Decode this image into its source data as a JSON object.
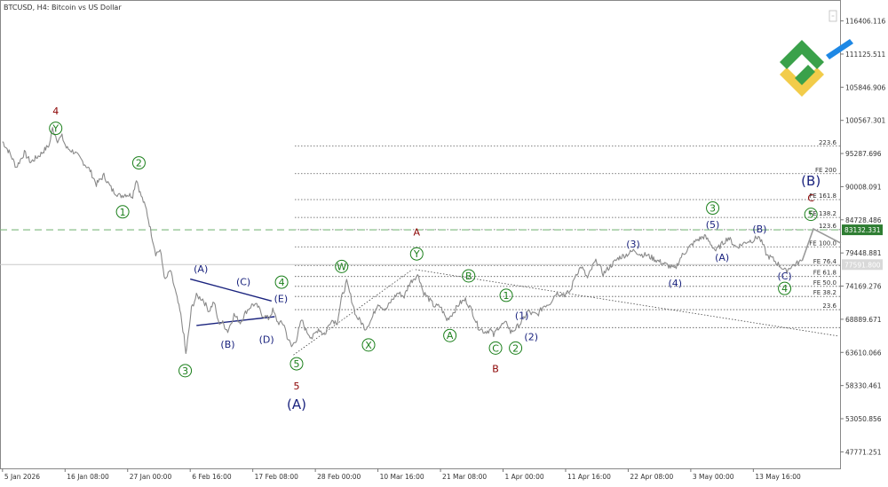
{
  "chart_data": {
    "type": "line",
    "title": "BTCUSD, H4:  Bitcoin vs US Dollar",
    "y_axis": {
      "ylim": [
        45140,
        119030
      ],
      "tick_labels": [
        "116406.116",
        "111125.511",
        "105846.906",
        "100567.301",
        "95287.696",
        "90008.091",
        "84728.486",
        "79448.881",
        "74169.276",
        "68889.671",
        "63610.066",
        "58330.461",
        "53050.856",
        "47771.251"
      ],
      "tick_values": [
        116406.116,
        111125.511,
        105846.906,
        100567.301,
        95287.696,
        90008.091,
        84728.486,
        79448.881,
        74169.276,
        68889.671,
        63610.066,
        58330.461,
        53050.856,
        47771.251
      ]
    },
    "x_axis": {
      "tick_labels": [
        "5 Jan 2026",
        "16 Jan 08:00",
        "27 Jan 00:00",
        "6 Feb 16:00",
        "17 Feb 08:00",
        "28 Feb 00:00",
        "10 Mar 16:00",
        "21 Mar 08:00",
        "1 Apr 00:00",
        "11 Apr 16:00",
        "22 Apr 08:00",
        "3 May 00:00",
        "13 May 16:00"
      ],
      "tick_pos": [
        0,
        1,
        2,
        3,
        4,
        5,
        6,
        7,
        8,
        9,
        10,
        11,
        12
      ],
      "xlim": [
        -0.04,
        13.4
      ]
    },
    "price_path": [
      [
        0.0,
        97200
      ],
      [
        0.12,
        95300
      ],
      [
        0.22,
        93100
      ],
      [
        0.35,
        95400
      ],
      [
        0.45,
        93900
      ],
      [
        0.6,
        95100
      ],
      [
        0.75,
        96700
      ],
      [
        0.8,
        99300
      ],
      [
        0.88,
        97400
      ],
      [
        0.95,
        98000
      ],
      [
        1.02,
        96200
      ],
      [
        1.15,
        95500
      ],
      [
        1.28,
        94000
      ],
      [
        1.4,
        92600
      ],
      [
        1.5,
        90400
      ],
      [
        1.62,
        91800
      ],
      [
        1.75,
        89500
      ],
      [
        1.88,
        88500
      ],
      [
        1.96,
        88800
      ],
      [
        2.08,
        88600
      ],
      [
        2.14,
        91300
      ],
      [
        2.2,
        89000
      ],
      [
        2.3,
        86300
      ],
      [
        2.38,
        82500
      ],
      [
        2.45,
        79400
      ],
      [
        2.52,
        79900
      ],
      [
        2.6,
        75000
      ],
      [
        2.68,
        76700
      ],
      [
        2.76,
        73500
      ],
      [
        2.85,
        69500
      ],
      [
        2.9,
        66100
      ],
      [
        2.93,
        63300
      ],
      [
        2.97,
        66300
      ],
      [
        3.02,
        70600
      ],
      [
        3.1,
        72600
      ],
      [
        3.2,
        72100
      ],
      [
        3.3,
        70200
      ],
      [
        3.38,
        71700
      ],
      [
        3.45,
        68400
      ],
      [
        3.52,
        68300
      ],
      [
        3.6,
        67000
      ],
      [
        3.7,
        69600
      ],
      [
        3.8,
        68400
      ],
      [
        3.9,
        70200
      ],
      [
        4.0,
        71300
      ],
      [
        4.08,
        70900
      ],
      [
        4.15,
        69600
      ],
      [
        4.25,
        69000
      ],
      [
        4.32,
        70300
      ],
      [
        4.4,
        68400
      ],
      [
        4.5,
        68100
      ],
      [
        4.55,
        66100
      ],
      [
        4.62,
        64500
      ],
      [
        4.7,
        65800
      ],
      [
        4.78,
        68800
      ],
      [
        4.85,
        67100
      ],
      [
        4.95,
        65900
      ],
      [
        5.05,
        67400
      ],
      [
        5.15,
        66400
      ],
      [
        5.25,
        68800
      ],
      [
        5.35,
        68400
      ],
      [
        5.42,
        72300
      ],
      [
        5.5,
        74800
      ],
      [
        5.58,
        72000
      ],
      [
        5.65,
        69400
      ],
      [
        5.72,
        68600
      ],
      [
        5.8,
        67400
      ],
      [
        5.9,
        68900
      ],
      [
        6.0,
        71500
      ],
      [
        6.12,
        70300
      ],
      [
        6.22,
        71900
      ],
      [
        6.32,
        73100
      ],
      [
        6.42,
        72500
      ],
      [
        6.5,
        74500
      ],
      [
        6.58,
        75500
      ],
      [
        6.65,
        75900
      ],
      [
        6.72,
        73300
      ],
      [
        6.8,
        72300
      ],
      [
        6.9,
        71000
      ],
      [
        7.0,
        70900
      ],
      [
        7.1,
        68800
      ],
      [
        7.2,
        69900
      ],
      [
        7.3,
        71400
      ],
      [
        7.4,
        72000
      ],
      [
        7.5,
        70300
      ],
      [
        7.6,
        67700
      ],
      [
        7.7,
        66900
      ],
      [
        7.8,
        67200
      ],
      [
        7.85,
        66300
      ],
      [
        7.92,
        67600
      ],
      [
        8.0,
        68100
      ],
      [
        8.07,
        68200
      ],
      [
        8.12,
        66800
      ],
      [
        8.2,
        67400
      ],
      [
        8.3,
        68500
      ],
      [
        8.4,
        70200
      ],
      [
        8.45,
        69800
      ],
      [
        8.55,
        69600
      ],
      [
        8.65,
        71000
      ],
      [
        8.75,
        71500
      ],
      [
        8.85,
        73100
      ],
      [
        9.0,
        72800
      ],
      [
        9.08,
        73400
      ],
      [
        9.15,
        75800
      ],
      [
        9.25,
        77300
      ],
      [
        9.35,
        75400
      ],
      [
        9.45,
        77700
      ],
      [
        9.5,
        78200
      ],
      [
        9.6,
        76100
      ],
      [
        9.7,
        77200
      ],
      [
        9.85,
        78700
      ],
      [
        10.0,
        79300
      ],
      [
        10.1,
        79900
      ],
      [
        10.2,
        79200
      ],
      [
        10.3,
        79100
      ],
      [
        10.45,
        78300
      ],
      [
        10.6,
        77600
      ],
      [
        10.75,
        76900
      ],
      [
        10.85,
        78900
      ],
      [
        11.0,
        80600
      ],
      [
        11.1,
        81500
      ],
      [
        11.22,
        82100
      ],
      [
        11.3,
        81200
      ],
      [
        11.4,
        79800
      ],
      [
        11.5,
        80900
      ],
      [
        11.6,
        81900
      ],
      [
        11.72,
        80400
      ],
      [
        11.8,
        80700
      ],
      [
        11.9,
        81300
      ],
      [
        12.0,
        81500
      ],
      [
        12.08,
        82100
      ],
      [
        12.15,
        80800
      ],
      [
        12.22,
        79000
      ],
      [
        12.3,
        78600
      ],
      [
        12.38,
        77800
      ],
      [
        12.45,
        77200
      ],
      [
        12.52,
        76500
      ],
      [
        12.6,
        77300
      ],
      [
        12.7,
        77800
      ],
      [
        12.78,
        78200
      ]
    ],
    "projection": [
      [
        12.78,
        78200
      ],
      [
        12.96,
        83290
      ],
      [
        13.4,
        81000
      ]
    ],
    "fib_levels": [
      {
        "label": "223.6",
        "value": 96460
      },
      {
        "label": "FE 200",
        "value": 92080
      },
      {
        "label": "FE 161.8",
        "value": 87950
      },
      {
        "label": "FE 138.2",
        "value": 85100
      },
      {
        "label": "123.6",
        "value": 83160
      },
      {
        "label": "FE 100.0",
        "value": 80420
      },
      {
        "label": "FE 76.4",
        "value": 77460
      },
      {
        "label": "FE 61.8",
        "value": 75700
      },
      {
        "label": "FE 50.0",
        "value": 74130
      },
      {
        "label": "FE 38.2",
        "value": 72520
      },
      {
        "label": "23.6",
        "value": 70420
      },
      {
        "label": "",
        "value": 67560
      }
    ],
    "price_markers": [
      {
        "label": "83132.331",
        "value": 83132.331,
        "style": "dashed-green"
      },
      {
        "label": "77591.800",
        "value": 77591.8,
        "style": "solid-gray"
      }
    ],
    "trendlines": [
      [
        [
          3.0,
          75300
        ],
        [
          4.3,
          71800
        ]
      ],
      [
        [
          3.1,
          67900
        ],
        [
          4.35,
          69300
        ]
      ],
      [
        [
          4.65,
          63200
        ],
        [
          6.55,
          76800
        ]
      ],
      [
        [
          6.6,
          76800
        ],
        [
          13.37,
          66200
        ]
      ]
    ],
    "wave_labels": [
      {
        "text": "4",
        "x": 0.85,
        "y": 102100,
        "color": "#8b0000",
        "circled": false
      },
      {
        "text": "Y",
        "x": 0.85,
        "y": 99300,
        "color": "#1a7f1a",
        "circled": true
      },
      {
        "text": "2",
        "x": 2.18,
        "y": 93800,
        "color": "#1a7f1a",
        "circled": true
      },
      {
        "text": "1",
        "x": 1.92,
        "y": 86000,
        "color": "#1a7f1a",
        "circled": true
      },
      {
        "text": "3",
        "x": 2.92,
        "y": 60700,
        "color": "#1a7f1a",
        "circled": true
      },
      {
        "text": "(A)",
        "x": 3.17,
        "y": 76900,
        "color": "#1a237e",
        "circled": false
      },
      {
        "text": "(B)",
        "x": 3.6,
        "y": 64900,
        "color": "#1a237e",
        "circled": false
      },
      {
        "text": "(C)",
        "x": 3.85,
        "y": 74900,
        "color": "#1a237e",
        "circled": false
      },
      {
        "text": "(D)",
        "x": 4.22,
        "y": 65700,
        "color": "#1a237e",
        "circled": false
      },
      {
        "text": "(E)",
        "x": 4.45,
        "y": 72200,
        "color": "#1a237e",
        "circled": false
      },
      {
        "text": "4",
        "x": 4.46,
        "y": 74800,
        "color": "#1a7f1a",
        "circled": true
      },
      {
        "text": "5",
        "x": 4.7,
        "y": 61800,
        "color": "#1a7f1a",
        "circled": true
      },
      {
        "text": "5",
        "x": 4.7,
        "y": 58300,
        "color": "#8b0000",
        "circled": false
      },
      {
        "text": "(A)",
        "x": 4.7,
        "y": 55200,
        "color": "#1a237e",
        "circled": false
      },
      {
        "text": "W",
        "x": 5.42,
        "y": 77300,
        "color": "#1a7f1a",
        "circled": true
      },
      {
        "text": "X",
        "x": 5.85,
        "y": 64800,
        "color": "#1a7f1a",
        "circled": true
      },
      {
        "text": "A",
        "x": 6.62,
        "y": 82800,
        "color": "#8b0000",
        "circled": false
      },
      {
        "text": "Y",
        "x": 6.62,
        "y": 79300,
        "color": "#1a7f1a",
        "circled": true
      },
      {
        "text": "B",
        "x": 7.45,
        "y": 75800,
        "color": "#1a7f1a",
        "circled": true
      },
      {
        "text": "A",
        "x": 7.15,
        "y": 66300,
        "color": "#1a7f1a",
        "circled": true
      },
      {
        "text": "C",
        "x": 7.88,
        "y": 64300,
        "color": "#1a7f1a",
        "circled": true
      },
      {
        "text": "B",
        "x": 7.88,
        "y": 61000,
        "color": "#8b0000",
        "circled": false
      },
      {
        "text": "1",
        "x": 8.05,
        "y": 72700,
        "color": "#1a7f1a",
        "circled": true
      },
      {
        "text": "(1)",
        "x": 8.3,
        "y": 69500,
        "color": "#1a237e",
        "circled": false
      },
      {
        "text": "2",
        "x": 8.2,
        "y": 64300,
        "color": "#1a7f1a",
        "circled": true
      },
      {
        "text": "(2)",
        "x": 8.45,
        "y": 66100,
        "color": "#1a237e",
        "circled": false
      },
      {
        "text": "(3)",
        "x": 10.08,
        "y": 80900,
        "color": "#1a237e",
        "circled": false
      },
      {
        "text": "(4)",
        "x": 10.75,
        "y": 74700,
        "color": "#1a237e",
        "circled": false
      },
      {
        "text": "3",
        "x": 11.35,
        "y": 86600,
        "color": "#1a7f1a",
        "circled": true
      },
      {
        "text": "(5)",
        "x": 11.35,
        "y": 84000,
        "color": "#1a237e",
        "circled": false
      },
      {
        "text": "(A)",
        "x": 11.5,
        "y": 78800,
        "color": "#1a237e",
        "circled": false
      },
      {
        "text": "(B)",
        "x": 12.1,
        "y": 83300,
        "color": "#1a237e",
        "circled": false
      },
      {
        "text": "(C)",
        "x": 12.5,
        "y": 75800,
        "color": "#1a237e",
        "circled": false
      },
      {
        "text": "4",
        "x": 12.5,
        "y": 73800,
        "color": "#1a7f1a",
        "circled": true
      },
      {
        "text": "(B)",
        "x": 12.92,
        "y": 90800,
        "color": "#1a237e",
        "circled": false
      },
      {
        "text": "C",
        "x": 12.92,
        "y": 88200,
        "color": "#8b0000",
        "circled": false
      },
      {
        "text": "5",
        "x": 12.92,
        "y": 85600,
        "color": "#1a7f1a",
        "circled": true
      }
    ],
    "grid": false
  },
  "colors": {
    "price": "#8a8a8a",
    "wave_green": "#1a7f1a",
    "wave_blue": "#1a237e",
    "wave_red": "#8b0000",
    "dashed_line": "#7cb97c",
    "current_price_badge": "#2e7d32",
    "last_price_badge": "#d9d9d9",
    "logo_green": "#3aa14a",
    "logo_yellow": "#f2cc4a",
    "logo_blue": "#1e88e5"
  },
  "icons": {
    "logo": "broker-logo-icon",
    "window_control": "window-control-icon"
  }
}
